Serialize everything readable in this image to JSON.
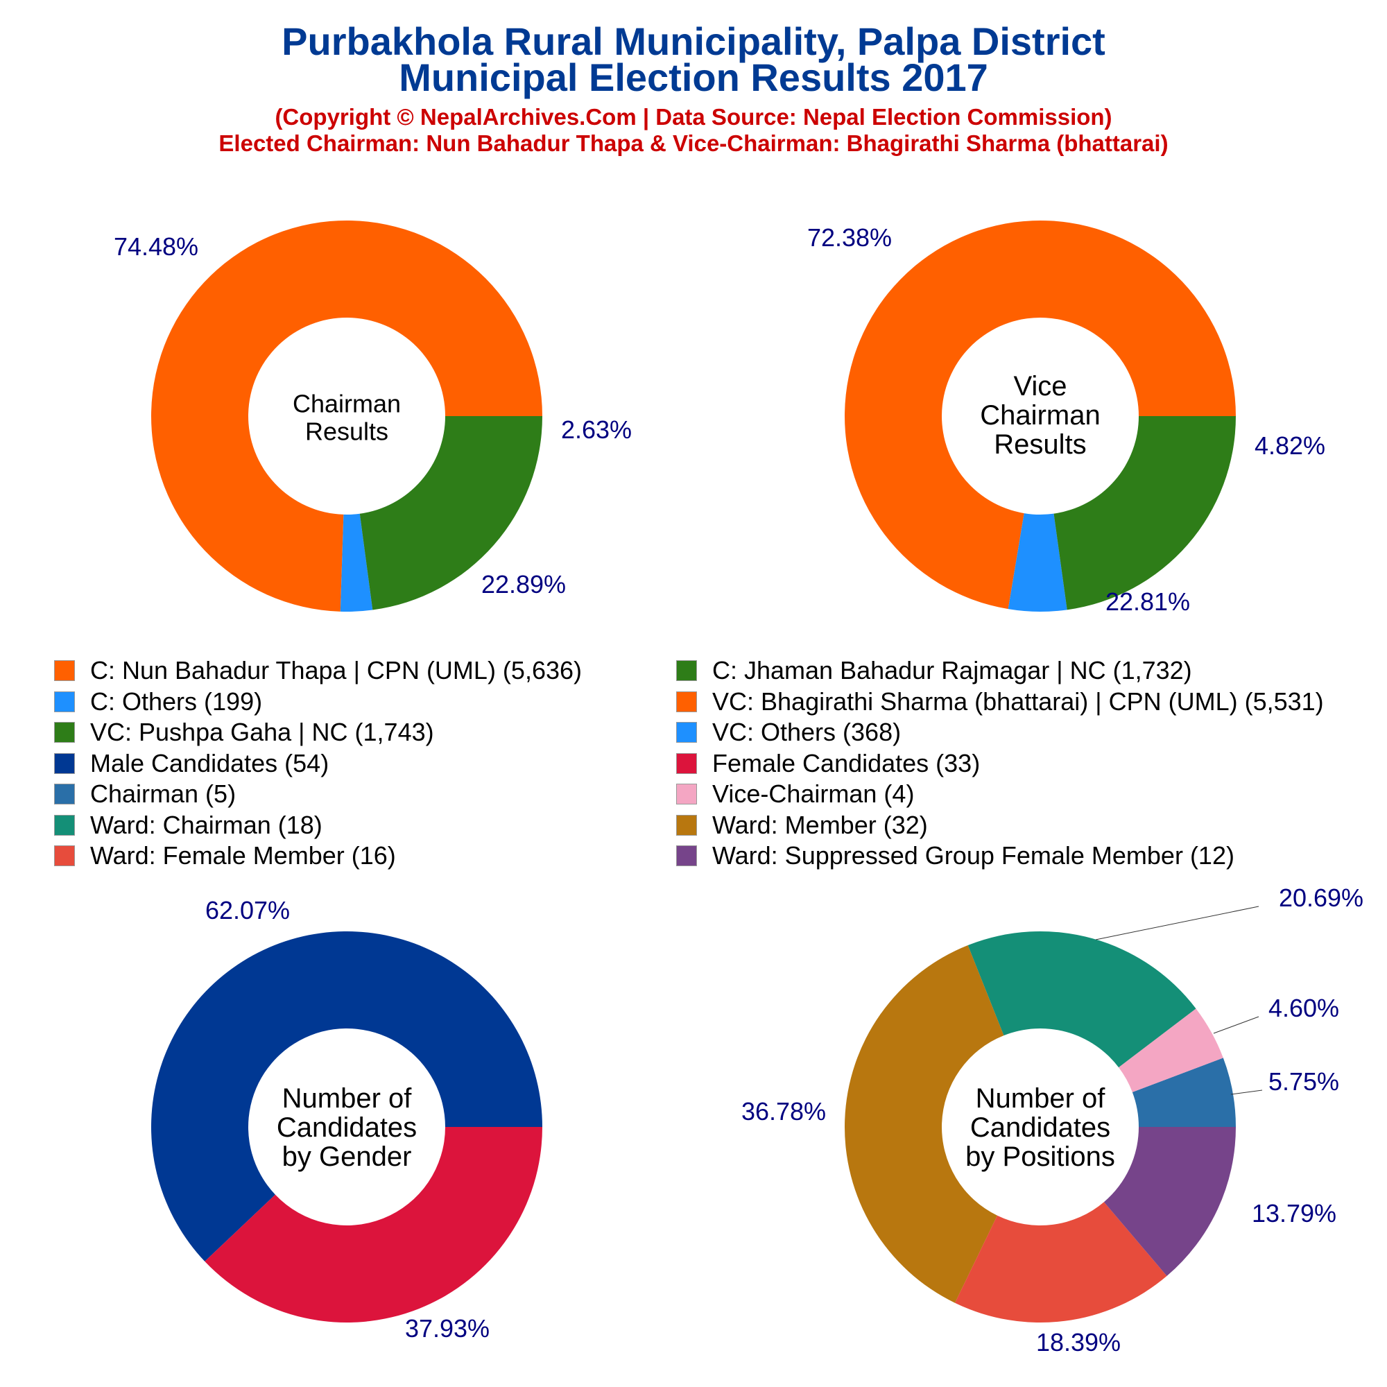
{
  "title_line1": "Purbakhola Rural Municipality, Palpa District",
  "title_line2": "Municipal Election Results 2017",
  "subtitle_line1": "(Copyright © NepalArchives.Com | Data Source: Nepal Election Commission)",
  "subtitle_line2": "Elected Chairman: Nun Bahadur Thapa & Vice-Chairman: Bhagirathi Sharma (bhattarai)",
  "colors": {
    "title": "#003a93",
    "subtitle": "#cc0000",
    "pct_label": "#000080"
  },
  "legend": [
    {
      "label": "C: Nun Bahadur Thapa | CPN (UML) (5,636)",
      "color": "#ff6000"
    },
    {
      "label": "C: Jhaman Bahadur Rajmagar | NC (1,732)",
      "color": "#2e7d18"
    },
    {
      "label": "C: Others (199)",
      "color": "#1e90ff"
    },
    {
      "label": "VC: Bhagirathi Sharma (bhattarai) | CPN (UML) (5,531)",
      "color": "#ff6000"
    },
    {
      "label": "VC: Pushpa Gaha | NC (1,743)",
      "color": "#2e7d18"
    },
    {
      "label": "VC: Others (368)",
      "color": "#1e90ff"
    },
    {
      "label": "Male Candidates (54)",
      "color": "#003893"
    },
    {
      "label": "Female Candidates (33)",
      "color": "#dc143c"
    },
    {
      "label": "Chairman (5)",
      "color": "#2a6fa8"
    },
    {
      "label": "Vice-Chairman (4)",
      "color": "#f4a6c3"
    },
    {
      "label": "Ward: Chairman (18)",
      "color": "#148f77"
    },
    {
      "label": "Ward: Member (32)",
      "color": "#b8770f"
    },
    {
      "label": "Ward: Female Member (16)",
      "color": "#e74c3c"
    },
    {
      "label": "Ward: Suppressed Group Female Member (12)",
      "color": "#76448a"
    }
  ],
  "chart_data": [
    {
      "type": "pie",
      "center_label": [
        "Chairman",
        "Results"
      ],
      "slices": [
        {
          "label": "C: Nun Bahadur Thapa | CPN (UML)",
          "value": 5636,
          "pct_text": "74.48%",
          "color": "#ff6000"
        },
        {
          "label": "C: Others",
          "value": 199,
          "pct_text": "2.63%",
          "color": "#1e90ff"
        },
        {
          "label": "C: Jhaman Bahadur Rajmagar | NC",
          "value": 1732,
          "pct_text": "22.89%",
          "color": "#2e7d18"
        }
      ]
    },
    {
      "type": "pie",
      "center_label": [
        "Vice",
        "Chairman",
        "Results"
      ],
      "slices": [
        {
          "label": "VC: Bhagirathi Sharma (bhattarai) | CPN (UML)",
          "value": 5531,
          "pct_text": "72.38%",
          "color": "#ff6000"
        },
        {
          "label": "VC: Others",
          "value": 368,
          "pct_text": "4.82%",
          "color": "#1e90ff"
        },
        {
          "label": "VC: Pushpa Gaha | NC",
          "value": 1743,
          "pct_text": "22.81%",
          "color": "#2e7d18"
        }
      ]
    },
    {
      "type": "pie",
      "center_label": [
        "Number of",
        "Candidates",
        "by Gender"
      ],
      "slices": [
        {
          "label": "Male Candidates",
          "value": 54,
          "pct_text": "62.07%",
          "color": "#003893"
        },
        {
          "label": "Female Candidates",
          "value": 33,
          "pct_text": "37.93%",
          "color": "#dc143c"
        }
      ]
    },
    {
      "type": "pie",
      "center_label": [
        "Number of",
        "Candidates",
        "by Positions"
      ],
      "slices": [
        {
          "label": "Chairman",
          "value": 5,
          "pct_text": "5.75%",
          "color": "#2a6fa8"
        },
        {
          "label": "Vice-Chairman",
          "value": 4,
          "pct_text": "4.60%",
          "color": "#f4a6c3"
        },
        {
          "label": "Ward: Chairman",
          "value": 18,
          "pct_text": "20.69%",
          "color": "#148f77"
        },
        {
          "label": "Ward: Member",
          "value": 32,
          "pct_text": "36.78%",
          "color": "#b8770f"
        },
        {
          "label": "Ward: Female Member",
          "value": 16,
          "pct_text": "18.39%",
          "color": "#e74c3c"
        },
        {
          "label": "Ward: Suppressed Group Female Member",
          "value": 12,
          "pct_text": "13.79%",
          "color": "#76448a"
        }
      ]
    }
  ]
}
